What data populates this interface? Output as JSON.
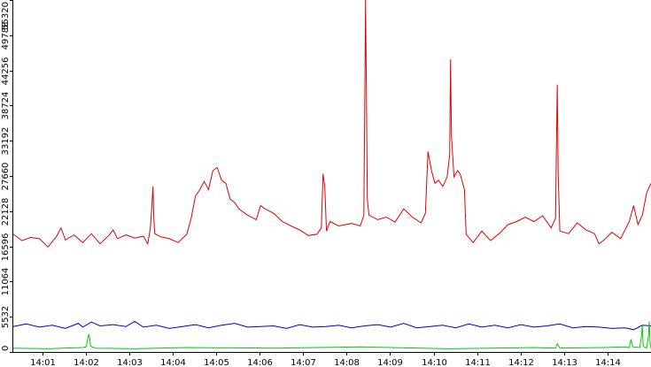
{
  "chart_data": {
    "type": "line",
    "title": "",
    "xlabel": "",
    "ylabel": "",
    "x_ticks": [
      "14:01",
      "14:02",
      "14:03",
      "14:04",
      "14:05",
      "14:06",
      "14:07",
      "14:08",
      "14:09",
      "14:10",
      "14:11",
      "14:12",
      "14:13",
      "14:14"
    ],
    "y_ticks": [
      {
        "label": "0",
        "value": 0
      },
      {
        "label": "5532",
        "value": 5532
      },
      {
        "label": "11064",
        "value": 11064
      },
      {
        "label": "16596",
        "value": 16596
      },
      {
        "label": "22128",
        "value": 22128
      },
      {
        "label": "27660",
        "value": 27660
      },
      {
        "label": "33192",
        "value": 33192
      },
      {
        "label": "38724",
        "value": 38724
      },
      {
        "label": "44256",
        "value": 44256
      },
      {
        "label": "49788",
        "value": 49788
      },
      {
        "label": "55320",
        "value": 55320
      }
    ],
    "x_range": [
      "14:00:20",
      "14:15:00"
    ],
    "ylim": [
      0,
      55320
    ],
    "grid": false,
    "legend": "none",
    "series": [
      {
        "color": "#e00000",
        "values": [
          [
            0,
            18500
          ],
          [
            10,
            17500
          ],
          [
            20,
            18000
          ],
          [
            30,
            17800
          ],
          [
            40,
            16500
          ],
          [
            50,
            18200
          ],
          [
            55,
            19500
          ],
          [
            60,
            17600
          ],
          [
            70,
            18400
          ],
          [
            80,
            17200
          ],
          [
            90,
            18600
          ],
          [
            100,
            17000
          ],
          [
            110,
            18300
          ],
          [
            115,
            19200
          ],
          [
            120,
            17800
          ],
          [
            130,
            18400
          ],
          [
            140,
            17900
          ],
          [
            150,
            18200
          ],
          [
            155,
            17000
          ],
          [
            158,
            19500
          ],
          [
            160,
            23500
          ],
          [
            161,
            26000
          ],
          [
            162,
            21000
          ],
          [
            163,
            18600
          ],
          [
            170,
            18100
          ],
          [
            180,
            17800
          ],
          [
            190,
            17200
          ],
          [
            200,
            18500
          ],
          [
            205,
            21000
          ],
          [
            210,
            24500
          ],
          [
            215,
            25500
          ],
          [
            220,
            26800
          ],
          [
            225,
            25500
          ],
          [
            230,
            28500
          ],
          [
            235,
            29000
          ],
          [
            240,
            27000
          ],
          [
            245,
            26500
          ],
          [
            250,
            24000
          ],
          [
            255,
            23500
          ],
          [
            260,
            22500
          ],
          [
            270,
            21500
          ],
          [
            280,
            20800
          ],
          [
            285,
            23000
          ],
          [
            290,
            22500
          ],
          [
            300,
            21800
          ],
          [
            310,
            20500
          ],
          [
            320,
            19800
          ],
          [
            330,
            19200
          ],
          [
            340,
            18300
          ],
          [
            350,
            18500
          ],
          [
            355,
            19500
          ],
          [
            357,
            28000
          ],
          [
            359,
            26000
          ],
          [
            361,
            19000
          ],
          [
            365,
            20500
          ],
          [
            375,
            19800
          ],
          [
            390,
            20200
          ],
          [
            400,
            19800
          ],
          [
            404,
            21500
          ],
          [
            405,
            37000
          ],
          [
            406,
            58000
          ],
          [
            407,
            41000
          ],
          [
            408,
            24000
          ],
          [
            410,
            21500
          ],
          [
            420,
            20800
          ],
          [
            430,
            21200
          ],
          [
            440,
            20400
          ],
          [
            450,
            22500
          ],
          [
            460,
            21200
          ],
          [
            470,
            20300
          ],
          [
            475,
            21800
          ],
          [
            478,
            31500
          ],
          [
            482,
            28500
          ],
          [
            486,
            26500
          ],
          [
            490,
            27000
          ],
          [
            495,
            26000
          ],
          [
            500,
            27500
          ],
          [
            503,
            31000
          ],
          [
            504,
            46000
          ],
          [
            505,
            34000
          ],
          [
            508,
            27500
          ],
          [
            512,
            28500
          ],
          [
            515,
            28000
          ],
          [
            520,
            25500
          ],
          [
            522,
            18500
          ],
          [
            530,
            17200
          ],
          [
            540,
            19000
          ],
          [
            550,
            17500
          ],
          [
            560,
            18600
          ],
          [
            570,
            20000
          ],
          [
            580,
            20500
          ],
          [
            590,
            21200
          ],
          [
            600,
            20500
          ],
          [
            610,
            21400
          ],
          [
            620,
            19500
          ],
          [
            625,
            21000
          ],
          [
            626,
            32000
          ],
          [
            627,
            42000
          ],
          [
            628,
            28000
          ],
          [
            630,
            19000
          ],
          [
            640,
            18600
          ],
          [
            650,
            20300
          ],
          [
            660,
            19200
          ],
          [
            670,
            18600
          ],
          [
            675,
            17000
          ],
          [
            680,
            17500
          ],
          [
            690,
            18800
          ],
          [
            700,
            17800
          ],
          [
            710,
            20500
          ],
          [
            715,
            23000
          ],
          [
            720,
            20000
          ],
          [
            725,
            21500
          ],
          [
            730,
            25000
          ],
          [
            735,
            26500
          ]
        ]
      },
      {
        "color": "#0000cc",
        "values": [
          [
            0,
            4000
          ],
          [
            15,
            4400
          ],
          [
            30,
            3900
          ],
          [
            45,
            4200
          ],
          [
            60,
            3700
          ],
          [
            75,
            4500
          ],
          [
            80,
            3900
          ],
          [
            90,
            4700
          ],
          [
            100,
            4100
          ],
          [
            115,
            4300
          ],
          [
            130,
            4000
          ],
          [
            140,
            4800
          ],
          [
            150,
            3900
          ],
          [
            165,
            4200
          ],
          [
            180,
            3700
          ],
          [
            195,
            4000
          ],
          [
            210,
            4300
          ],
          [
            225,
            3800
          ],
          [
            240,
            4200
          ],
          [
            255,
            4500
          ],
          [
            270,
            3900
          ],
          [
            285,
            4000
          ],
          [
            300,
            4100
          ],
          [
            315,
            3700
          ],
          [
            330,
            4300
          ],
          [
            345,
            3900
          ],
          [
            360,
            4000
          ],
          [
            375,
            4200
          ],
          [
            390,
            3800
          ],
          [
            405,
            4100
          ],
          [
            420,
            4300
          ],
          [
            435,
            3900
          ],
          [
            450,
            4500
          ],
          [
            465,
            3800
          ],
          [
            480,
            4000
          ],
          [
            495,
            4200
          ],
          [
            510,
            3800
          ],
          [
            525,
            4400
          ],
          [
            540,
            3900
          ],
          [
            555,
            4200
          ],
          [
            570,
            3800
          ],
          [
            585,
            4300
          ],
          [
            600,
            3900
          ],
          [
            615,
            4100
          ],
          [
            630,
            4400
          ],
          [
            645,
            3800
          ],
          [
            660,
            4000
          ],
          [
            675,
            3900
          ],
          [
            690,
            3700
          ],
          [
            705,
            3800
          ],
          [
            715,
            3500
          ],
          [
            725,
            4200
          ],
          [
            735,
            4100
          ]
        ]
      },
      {
        "color": "#00cc00",
        "values": [
          [
            0,
            600
          ],
          [
            40,
            500
          ],
          [
            80,
            700
          ],
          [
            84,
            800
          ],
          [
            87,
            2800
          ],
          [
            88,
            2300
          ],
          [
            89,
            900
          ],
          [
            95,
            600
          ],
          [
            140,
            500
          ],
          [
            200,
            700
          ],
          [
            300,
            600
          ],
          [
            400,
            800
          ],
          [
            500,
            500
          ],
          [
            550,
            600
          ],
          [
            600,
            700
          ],
          [
            625,
            600
          ],
          [
            627,
            1300
          ],
          [
            630,
            600
          ],
          [
            680,
            700
          ],
          [
            705,
            800
          ],
          [
            710,
            700
          ],
          [
            712,
            2000
          ],
          [
            714,
            800
          ],
          [
            722,
            700
          ],
          [
            724,
            2400
          ],
          [
            725,
            4200
          ],
          [
            726,
            900
          ],
          [
            730,
            600
          ],
          [
            732,
            2500
          ],
          [
            733,
            4800
          ],
          [
            734,
            1200
          ],
          [
            735,
            600
          ]
        ]
      }
    ]
  }
}
